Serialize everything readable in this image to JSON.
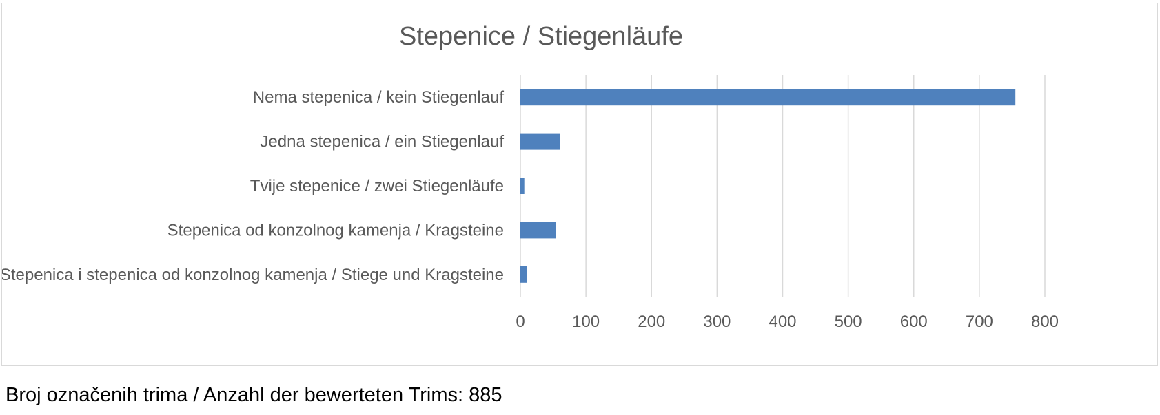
{
  "chart_data": {
    "type": "bar",
    "orientation": "horizontal",
    "title": "Stepenice / Stiegenläufe",
    "categories": [
      "Nema stepenica / kein Stiegenlauf",
      "Jedna stepenica / ein Stiegenlauf",
      "Tvije stepenice / zwei Stiegenläufe",
      "Stepenica od konzolnog kamenja / Kragsteine",
      "Stepenica i stepenica od konzolnog kamenja / Stiege und Kragsteine"
    ],
    "values": [
      755,
      60,
      6,
      54,
      10
    ],
    "xlim": [
      0,
      800
    ],
    "xticks": [
      "0",
      "100",
      "200",
      "300",
      "400",
      "500",
      "600",
      "700",
      "800"
    ],
    "xlabel": "",
    "ylabel": "",
    "grid": true,
    "legend": "none",
    "colors": {
      "bar": "#4f81bd",
      "grid": "#d9d9d9",
      "text": "#595959",
      "border": "#d9d9d9"
    }
  },
  "footnote": "Broj označenih trima / Anzahl der bewerteten Trims: 885"
}
